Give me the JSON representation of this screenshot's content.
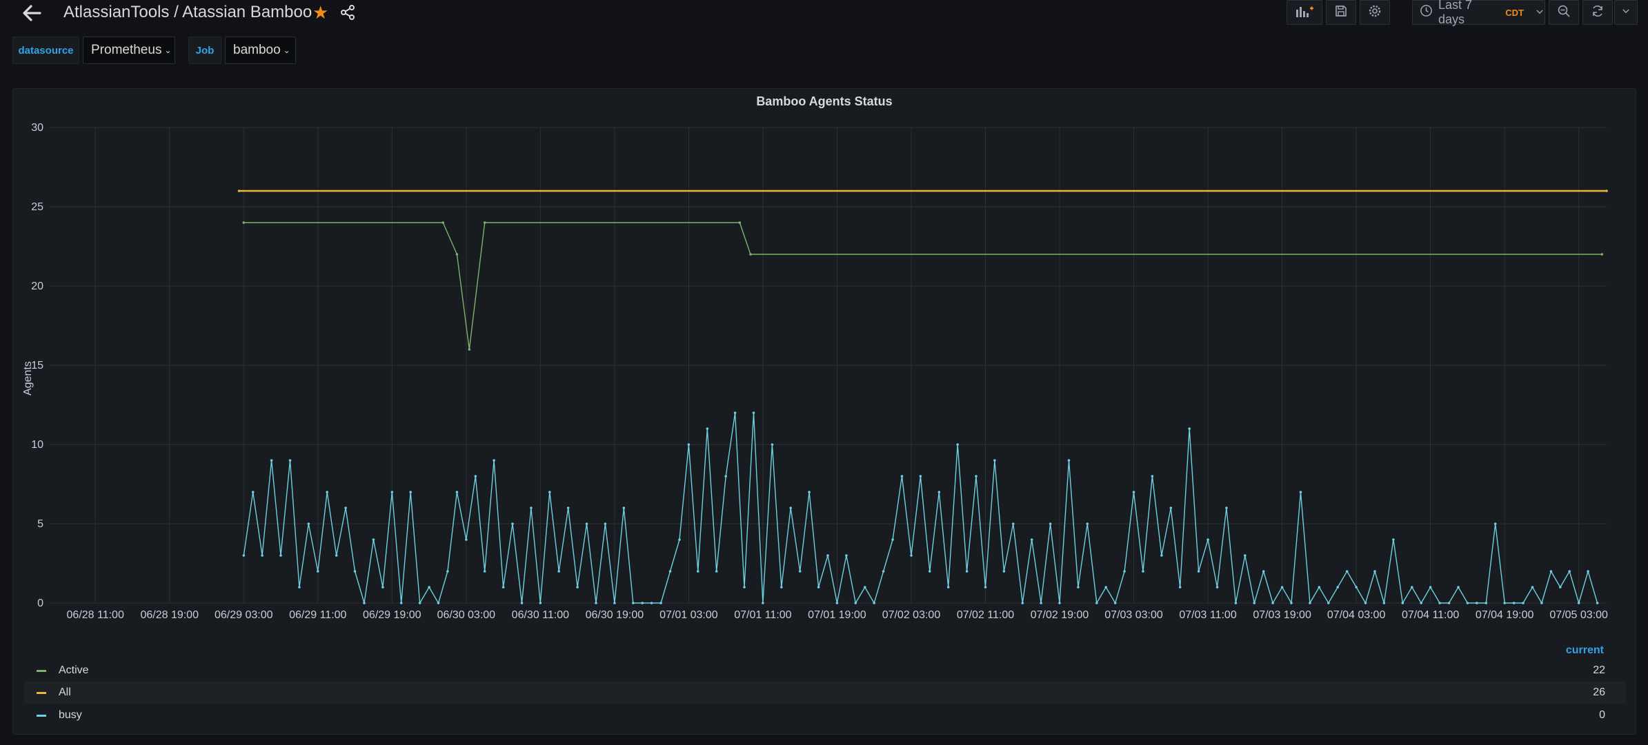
{
  "header": {
    "breadcrumb": "AtlassianTools / Atassian Bamboo",
    "time_range_label": "Last 7 days",
    "timezone": "CDT"
  },
  "variables": [
    {
      "label": "datasource",
      "value": "Prometheus"
    },
    {
      "label": "Job",
      "value": "bamboo"
    }
  ],
  "colors": {
    "accent_blue": "#33a2e5",
    "star": "#f28c1a",
    "active": "#7eb26d",
    "all": "#eab839",
    "busy": "#6ed0e0"
  },
  "icons": [
    "back-arrow-icon",
    "star-icon",
    "share-icon",
    "add-panel-icon",
    "save-icon",
    "gear-icon",
    "clock-icon",
    "chevron-down-icon",
    "zoom-out-icon",
    "refresh-icon"
  ],
  "panel": {
    "title": "Bamboo Agents Status",
    "legend_header": "current",
    "legend": [
      {
        "name": "Active",
        "current": "22"
      },
      {
        "name": "All",
        "current": "26"
      },
      {
        "name": "busy",
        "current": "0"
      }
    ]
  },
  "chart_data": {
    "type": "line",
    "title": "Bamboo Agents Status",
    "xlabel": "",
    "ylabel": "Agents",
    "ylim": [
      0,
      30
    ],
    "yticks": [
      0,
      5,
      10,
      15,
      20,
      25,
      30
    ],
    "xlim": [
      "06/28 06:00",
      "07/05 06:00"
    ],
    "xticks": [
      "06/28 11:00",
      "06/28 19:00",
      "06/29 03:00",
      "06/29 11:00",
      "06/29 19:00",
      "06/30 03:00",
      "06/30 11:00",
      "06/30 19:00",
      "07/01 03:00",
      "07/01 11:00",
      "07/01 19:00",
      "07/02 03:00",
      "07/02 11:00",
      "07/02 19:00",
      "07/03 03:00",
      "07/03 11:00",
      "07/03 19:00",
      "07/04 03:00",
      "07/04 11:00",
      "07/04 19:00",
      "07/05 03:00"
    ],
    "grid": true,
    "legend_position": "bottom",
    "series": [
      {
        "name": "All",
        "points": [
          [
            "06/29 02:30",
            26
          ],
          [
            "07/05 06:00",
            26
          ]
        ]
      },
      {
        "name": "Active",
        "points": [
          [
            "06/29 03:00",
            24
          ],
          [
            "06/30 00:30",
            24
          ],
          [
            "06/30 02:00",
            22
          ],
          [
            "06/30 03:20",
            16
          ],
          [
            "06/30 05:00",
            24
          ],
          [
            "07/01 08:30",
            24
          ],
          [
            "07/01 09:40",
            22
          ],
          [
            "07/05 05:30",
            22
          ]
        ]
      },
      {
        "name": "busy",
        "points": [
          [
            "06/29 03:00",
            3
          ],
          [
            "06/29 04:00",
            7
          ],
          [
            "06/29 05:00",
            3
          ],
          [
            "06/29 06:00",
            9
          ],
          [
            "06/29 07:00",
            3
          ],
          [
            "06/29 08:00",
            9
          ],
          [
            "06/29 09:00",
            1
          ],
          [
            "06/29 10:00",
            5
          ],
          [
            "06/29 11:00",
            2
          ],
          [
            "06/29 12:00",
            7
          ],
          [
            "06/29 13:00",
            3
          ],
          [
            "06/29 14:00",
            6
          ],
          [
            "06/29 15:00",
            2
          ],
          [
            "06/29 16:00",
            0
          ],
          [
            "06/29 17:00",
            4
          ],
          [
            "06/29 18:00",
            1
          ],
          [
            "06/29 19:00",
            7
          ],
          [
            "06/29 20:00",
            0
          ],
          [
            "06/29 21:00",
            7
          ],
          [
            "06/29 22:00",
            0
          ],
          [
            "06/29 23:00",
            1
          ],
          [
            "06/30 00:00",
            0
          ],
          [
            "06/30 01:00",
            2
          ],
          [
            "06/30 02:00",
            7
          ],
          [
            "06/30 03:00",
            4
          ],
          [
            "06/30 04:00",
            8
          ],
          [
            "06/30 05:00",
            2
          ],
          [
            "06/30 06:00",
            9
          ],
          [
            "06/30 07:00",
            1
          ],
          [
            "06/30 08:00",
            5
          ],
          [
            "06/30 09:00",
            0
          ],
          [
            "06/30 10:00",
            6
          ],
          [
            "06/30 11:00",
            0
          ],
          [
            "06/30 12:00",
            7
          ],
          [
            "06/30 13:00",
            2
          ],
          [
            "06/30 14:00",
            6
          ],
          [
            "06/30 15:00",
            1
          ],
          [
            "06/30 16:00",
            5
          ],
          [
            "06/30 17:00",
            0
          ],
          [
            "06/30 18:00",
            5
          ],
          [
            "06/30 19:00",
            0
          ],
          [
            "06/30 20:00",
            6
          ],
          [
            "06/30 21:00",
            0
          ],
          [
            "06/30 22:00",
            0
          ],
          [
            "06/30 23:00",
            0
          ],
          [
            "07/01 00:00",
            0
          ],
          [
            "07/01 01:00",
            2
          ],
          [
            "07/01 02:00",
            4
          ],
          [
            "07/01 03:00",
            10
          ],
          [
            "07/01 04:00",
            2
          ],
          [
            "07/01 05:00",
            11
          ],
          [
            "07/01 06:00",
            2
          ],
          [
            "07/01 07:00",
            8
          ],
          [
            "07/01 08:00",
            12
          ],
          [
            "07/01 09:00",
            1
          ],
          [
            "07/01 10:00",
            12
          ],
          [
            "07/01 11:00",
            0
          ],
          [
            "07/01 12:00",
            10
          ],
          [
            "07/01 13:00",
            1
          ],
          [
            "07/01 14:00",
            6
          ],
          [
            "07/01 15:00",
            2
          ],
          [
            "07/01 16:00",
            7
          ],
          [
            "07/01 17:00",
            1
          ],
          [
            "07/01 18:00",
            3
          ],
          [
            "07/01 19:00",
            0
          ],
          [
            "07/01 20:00",
            3
          ],
          [
            "07/01 21:00",
            0
          ],
          [
            "07/01 22:00",
            1
          ],
          [
            "07/01 23:00",
            0
          ],
          [
            "07/02 00:00",
            2
          ],
          [
            "07/02 01:00",
            4
          ],
          [
            "07/02 02:00",
            8
          ],
          [
            "07/02 03:00",
            3
          ],
          [
            "07/02 04:00",
            8
          ],
          [
            "07/02 05:00",
            2
          ],
          [
            "07/02 06:00",
            7
          ],
          [
            "07/02 07:00",
            1
          ],
          [
            "07/02 08:00",
            10
          ],
          [
            "07/02 09:00",
            2
          ],
          [
            "07/02 10:00",
            8
          ],
          [
            "07/02 11:00",
            1
          ],
          [
            "07/02 12:00",
            9
          ],
          [
            "07/02 13:00",
            2
          ],
          [
            "07/02 14:00",
            5
          ],
          [
            "07/02 15:00",
            0
          ],
          [
            "07/02 16:00",
            4
          ],
          [
            "07/02 17:00",
            0
          ],
          [
            "07/02 18:00",
            5
          ],
          [
            "07/02 19:00",
            0
          ],
          [
            "07/02 20:00",
            9
          ],
          [
            "07/02 21:00",
            1
          ],
          [
            "07/02 22:00",
            5
          ],
          [
            "07/02 23:00",
            0
          ],
          [
            "07/03 00:00",
            1
          ],
          [
            "07/03 01:00",
            0
          ],
          [
            "07/03 02:00",
            2
          ],
          [
            "07/03 03:00",
            7
          ],
          [
            "07/03 04:00",
            2
          ],
          [
            "07/03 05:00",
            8
          ],
          [
            "07/03 06:00",
            3
          ],
          [
            "07/03 07:00",
            6
          ],
          [
            "07/03 08:00",
            1
          ],
          [
            "07/03 09:00",
            11
          ],
          [
            "07/03 10:00",
            2
          ],
          [
            "07/03 11:00",
            4
          ],
          [
            "07/03 12:00",
            1
          ],
          [
            "07/03 13:00",
            6
          ],
          [
            "07/03 14:00",
            0
          ],
          [
            "07/03 15:00",
            3
          ],
          [
            "07/03 16:00",
            0
          ],
          [
            "07/03 17:00",
            2
          ],
          [
            "07/03 18:00",
            0
          ],
          [
            "07/03 19:00",
            1
          ],
          [
            "07/03 20:00",
            0
          ],
          [
            "07/03 21:00",
            7
          ],
          [
            "07/03 22:00",
            0
          ],
          [
            "07/03 23:00",
            1
          ],
          [
            "07/04 00:00",
            0
          ],
          [
            "07/04 01:00",
            1
          ],
          [
            "07/04 02:00",
            2
          ],
          [
            "07/04 03:00",
            1
          ],
          [
            "07/04 04:00",
            0
          ],
          [
            "07/04 05:00",
            2
          ],
          [
            "07/04 06:00",
            0
          ],
          [
            "07/04 07:00",
            4
          ],
          [
            "07/04 08:00",
            0
          ],
          [
            "07/04 09:00",
            1
          ],
          [
            "07/04 10:00",
            0
          ],
          [
            "07/04 11:00",
            1
          ],
          [
            "07/04 12:00",
            0
          ],
          [
            "07/04 13:00",
            0
          ],
          [
            "07/04 14:00",
            1
          ],
          [
            "07/04 15:00",
            0
          ],
          [
            "07/04 16:00",
            0
          ],
          [
            "07/04 17:00",
            0
          ],
          [
            "07/04 18:00",
            5
          ],
          [
            "07/04 19:00",
            0
          ],
          [
            "07/04 20:00",
            0
          ],
          [
            "07/04 21:00",
            0
          ],
          [
            "07/04 22:00",
            1
          ],
          [
            "07/04 23:00",
            0
          ],
          [
            "07/05 00:00",
            2
          ],
          [
            "07/05 01:00",
            1
          ],
          [
            "07/05 02:00",
            2
          ],
          [
            "07/05 03:00",
            0
          ],
          [
            "07/05 04:00",
            2
          ],
          [
            "07/05 05:00",
            0
          ]
        ]
      }
    ]
  }
}
